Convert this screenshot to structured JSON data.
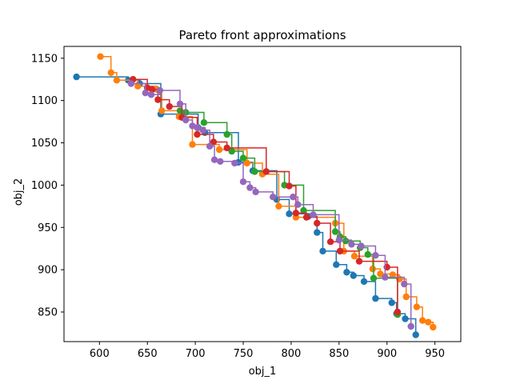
{
  "chart_data": {
    "type": "scatter",
    "title": "Pareto front approximations",
    "xlabel": "obj_1",
    "ylabel": "obj_2",
    "xlim": [
      563,
      977
    ],
    "ylim": [
      815,
      1164
    ],
    "xticks": [
      600,
      650,
      700,
      750,
      800,
      850,
      900,
      950
    ],
    "yticks": [
      850,
      900,
      950,
      1000,
      1050,
      1100,
      1150
    ],
    "grid": false,
    "legend": "none",
    "series": [
      {
        "color": "#1f77b4",
        "points": [
          [
            576,
            1128
          ],
          [
            630,
            1124
          ],
          [
            642,
            1120
          ],
          [
            664,
            1084
          ],
          [
            703,
            1068
          ],
          [
            710,
            1062
          ],
          [
            745,
            1027
          ],
          [
            760,
            1017
          ],
          [
            785,
            983
          ],
          [
            798,
            966
          ],
          [
            818,
            963
          ],
          [
            827,
            944
          ],
          [
            833,
            922
          ],
          [
            847,
            906
          ],
          [
            858,
            897
          ],
          [
            865,
            893
          ],
          [
            876,
            886
          ],
          [
            888,
            866
          ],
          [
            905,
            861
          ],
          [
            910,
            848
          ],
          [
            919,
            842
          ],
          [
            930,
            823
          ]
        ]
      },
      {
        "color": "#ff7f0e",
        "points": [
          [
            601,
            1152
          ],
          [
            612,
            1133
          ],
          [
            618,
            1124
          ],
          [
            640,
            1117
          ],
          [
            660,
            1113
          ],
          [
            665,
            1088
          ],
          [
            683,
            1081
          ],
          [
            697,
            1048
          ],
          [
            725,
            1042
          ],
          [
            754,
            1026
          ],
          [
            770,
            1013
          ],
          [
            787,
            975
          ],
          [
            805,
            962
          ],
          [
            846,
            955
          ],
          [
            855,
            922
          ],
          [
            866,
            916
          ],
          [
            885,
            901
          ],
          [
            893,
            895
          ],
          [
            906,
            894
          ],
          [
            913,
            889
          ],
          [
            920,
            868
          ],
          [
            931,
            856
          ],
          [
            937,
            840
          ],
          [
            943,
            838
          ],
          [
            948,
            832
          ]
        ]
      },
      {
        "color": "#2ca02c",
        "points": [
          [
            684,
            1088
          ],
          [
            690,
            1086
          ],
          [
            709,
            1074
          ],
          [
            733,
            1060
          ],
          [
            738,
            1040
          ],
          [
            750,
            1032
          ],
          [
            762,
            1016
          ],
          [
            793,
            1000
          ],
          [
            813,
            970
          ],
          [
            846,
            945
          ],
          [
            851,
            939
          ],
          [
            857,
            934
          ],
          [
            872,
            926
          ],
          [
            880,
            918
          ],
          [
            886,
            890
          ],
          [
            911,
            847
          ]
        ]
      },
      {
        "color": "#d62728",
        "points": [
          [
            635,
            1125
          ],
          [
            650,
            1115
          ],
          [
            655,
            1113
          ],
          [
            661,
            1101
          ],
          [
            673,
            1093
          ],
          [
            686,
            1080
          ],
          [
            702,
            1060
          ],
          [
            719,
            1051
          ],
          [
            733,
            1044
          ],
          [
            774,
            1016
          ],
          [
            798,
            999
          ],
          [
            805,
            967
          ],
          [
            816,
            962
          ],
          [
            827,
            955
          ],
          [
            841,
            933
          ],
          [
            851,
            922
          ],
          [
            871,
            910
          ],
          [
            900,
            903
          ],
          [
            911,
            850
          ]
        ]
      },
      {
        "color": "#9467bd",
        "points": [
          [
            633,
            1120
          ],
          [
            648,
            1109
          ],
          [
            654,
            1107
          ],
          [
            663,
            1112
          ],
          [
            684,
            1096
          ],
          [
            690,
            1077
          ],
          [
            697,
            1070
          ],
          [
            702,
            1068
          ],
          [
            708,
            1065
          ],
          [
            715,
            1046
          ],
          [
            720,
            1030
          ],
          [
            726,
            1028
          ],
          [
            741,
            1026
          ],
          [
            750,
            1004
          ],
          [
            757,
            997
          ],
          [
            763,
            992
          ],
          [
            781,
            986
          ],
          [
            802,
            986
          ],
          [
            807,
            977
          ],
          [
            823,
            965
          ],
          [
            850,
            935
          ],
          [
            863,
            930
          ],
          [
            873,
            928
          ],
          [
            888,
            917
          ],
          [
            898,
            891
          ],
          [
            918,
            883
          ],
          [
            925,
            833
          ]
        ]
      }
    ]
  }
}
